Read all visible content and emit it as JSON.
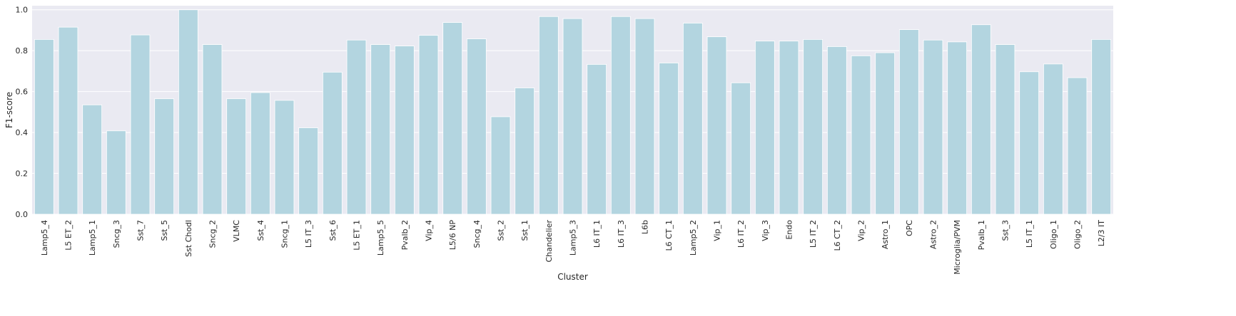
{
  "chart_data": {
    "type": "bar",
    "title": "",
    "xlabel": "Cluster",
    "ylabel": "F1-score",
    "ylim": [
      0,
      1.02
    ],
    "yticks": [
      "0.0",
      "0.2",
      "0.4",
      "0.6",
      "0.8",
      "1.0"
    ],
    "ytick_values": [
      0.0,
      0.2,
      0.4,
      0.6,
      0.8,
      1.0
    ],
    "grid": true,
    "legend": "none",
    "colors": {
      "bar": "#b3d5e0",
      "background": "#eaeaf2",
      "grid": "#ffffff"
    },
    "categories": [
      "Lamp5_4",
      "L5 ET_2",
      "Lamp5_1",
      "Sncg_3",
      "Sst_7",
      "Sst_5",
      "Sst Chodl",
      "Sncg_2",
      "VLMC",
      "Sst_4",
      "Sncg_1",
      "L5 IT_3",
      "Sst_6",
      "L5 ET_1",
      "Lamp5_5",
      "Pvalb_2",
      "Vip_4",
      "L5/6 NP",
      "Sncg_4",
      "Sst_2",
      "Sst_1",
      "Chandelier",
      "Lamp5_3",
      "L6 IT_1",
      "L6 IT_3",
      "L6b",
      "L6 CT_1",
      "Lamp5_2",
      "Vip_1",
      "L6 IT_2",
      "Vip_3",
      "Endo",
      "L5 IT_2",
      "L6 CT_2",
      "Vip_2",
      "Astro_1",
      "OPC",
      "Astro_2",
      "Microglia/PVM",
      "Pvalb_1",
      "Sst_3",
      "L5 IT_1",
      "Oligo_1",
      "Oligo_2",
      "L2/3 IT"
    ],
    "values": [
      0.855,
      0.915,
      0.535,
      0.408,
      0.877,
      0.565,
      1.0,
      0.83,
      0.565,
      0.595,
      0.557,
      0.423,
      0.695,
      0.852,
      0.83,
      0.823,
      0.875,
      0.938,
      0.858,
      0.477,
      0.618,
      0.967,
      0.957,
      0.733,
      0.967,
      0.957,
      0.74,
      0.935,
      0.868,
      0.643,
      0.847,
      0.847,
      0.855,
      0.82,
      0.775,
      0.79,
      0.903,
      0.852,
      0.843,
      0.927,
      0.83,
      0.697,
      0.735,
      0.668,
      0.855
    ]
  }
}
